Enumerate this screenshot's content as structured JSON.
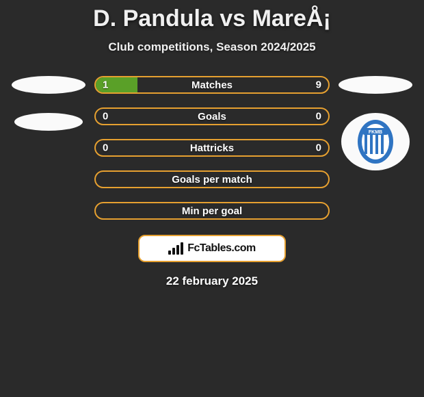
{
  "title": "D. Pandula vs MareÅ¡",
  "subtitle": "Club competitions, Season 2024/2025",
  "date": "22 february 2025",
  "colors": {
    "accent_orange": "#e6a030",
    "fill_green": "#5aa028",
    "shield_blue": "#2f74c2",
    "shield_inner": "#ffffff",
    "fc_black": "#111111"
  },
  "bars": [
    {
      "label": "Matches",
      "left": "1",
      "right": "9",
      "fill_pct": 18,
      "show_vals": true
    },
    {
      "label": "Goals",
      "left": "0",
      "right": "0",
      "fill_pct": 0,
      "show_vals": true
    },
    {
      "label": "Hattricks",
      "left": "0",
      "right": "0",
      "fill_pct": 0,
      "show_vals": true
    },
    {
      "label": "Goals per match",
      "left": "",
      "right": "",
      "fill_pct": 0,
      "show_vals": false
    },
    {
      "label": "Min per goal",
      "left": "",
      "right": "",
      "fill_pct": 0,
      "show_vals": false
    }
  ],
  "fctables_label": "FcTables.com"
}
